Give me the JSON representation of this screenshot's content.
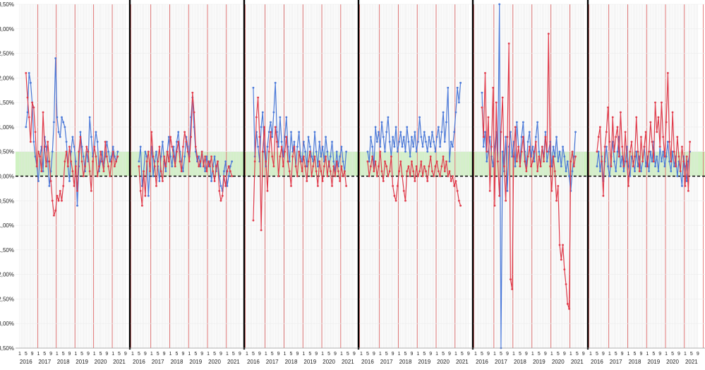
{
  "chart_data": {
    "type": "line",
    "title": "",
    "xlabel": "",
    "ylabel": "",
    "ylim": [
      -3.5,
      3.5
    ],
    "yticks": [
      "3,50%",
      "3,00%",
      "2,50%",
      "2,00%",
      "1,50%",
      "1,00%",
      "0,50%",
      "0,00%",
      "-0,50%",
      "-1,00%",
      "-1,50%",
      "-2,00%",
      "-2,50%",
      "-3,00%",
      "-3,50%"
    ],
    "ytick_values": [
      3.5,
      3.0,
      2.5,
      2.0,
      1.5,
      1.0,
      0.5,
      0.0,
      -0.5,
      -1.0,
      -1.5,
      -2.0,
      -2.5,
      -3.0,
      -3.5
    ],
    "month_tick_labels": [
      "1",
      "5",
      "9"
    ],
    "year_labels": [
      "2016",
      "2017",
      "2018",
      "2019",
      "2020",
      "2021"
    ],
    "band": {
      "from": 0.0,
      "to": 0.5,
      "color": "#c8f0b8"
    },
    "reference_line": {
      "value": 0.0,
      "style": "dashed",
      "color": "#000000"
    },
    "grid": true,
    "legend": "none",
    "colors": {
      "series_a": "#4a78d8",
      "series_b": "#e03a4a",
      "year_divider": "#e06060",
      "panel_divider": "#000000"
    },
    "panels": [
      {
        "series": [
          {
            "color": "#4a78d8",
            "values": [
              1.0,
              1.3,
              2.1,
              1.9,
              1.5,
              0.7,
              0.4,
              0.2,
              -0.1,
              0.4,
              0.6,
              0.1,
              0.8,
              0.6,
              0.3,
              -0.2,
              0.1,
              0.5,
              1.1,
              2.4,
              1.2,
              0.9,
              0.8,
              1.2,
              1.1,
              1.0,
              0.7,
              0.2,
              -0.1,
              0.5,
              0.8,
              0.6,
              0.3,
              -0.6,
              0.2,
              0.9,
              0.6,
              0.4,
              0.1,
              0.5,
              0.3,
              1.2,
              0.8,
              0.4,
              0.6,
              0.9,
              0.7,
              0.1,
              0.3,
              0.5,
              0.2,
              0.4,
              0.7,
              0.5,
              0.3,
              0.4,
              0.6,
              0.4,
              0.3,
              0.5
            ]
          },
          {
            "color": "#e03a4a",
            "values": [
              2.1,
              1.6,
              1.2,
              0.7,
              1.5,
              1.4,
              0.9,
              0.2,
              0.5,
              0.4,
              0.1,
              1.3,
              0.6,
              0.2,
              0.7,
              0.3,
              -0.1,
              -0.5,
              -0.8,
              -0.7,
              -0.4,
              -0.5,
              -0.3,
              -0.5,
              -0.2,
              0.3,
              0.5,
              0.2,
              0.6,
              0.3,
              0.1,
              -0.2,
              0.2,
              -0.3,
              0.5,
              0.8,
              0.3,
              0.0,
              0.2,
              0.6,
              0.5,
              0.1,
              -0.3,
              0.3,
              0.6,
              0.4,
              0.0,
              0.2,
              0.5,
              0.3,
              0.1,
              0.7,
              0.4,
              0.2,
              0.0,
              0.3,
              0.5,
              0.2,
              0.3,
              0.4
            ]
          }
        ]
      },
      {
        "series": [
          {
            "color": "#4a78d8",
            "values": [
              0.3,
              0.6,
              -0.2,
              0.1,
              0.5,
              0.4,
              -0.4,
              0.2,
              0.6,
              0.0,
              0.3,
              0.5,
              0.2,
              -0.1,
              0.4,
              0.7,
              0.3,
              0.1,
              0.5,
              0.8,
              0.4,
              0.2,
              0.6,
              0.3,
              0.7,
              0.9,
              0.5,
              0.3,
              0.1,
              0.4,
              0.8,
              0.6,
              0.4,
              1.2,
              1.6,
              1.0,
              0.5,
              0.3,
              0.4,
              0.2,
              0.5,
              0.3,
              0.1,
              0.4,
              0.2,
              0.3,
              -0.1,
              0.2,
              0.4,
              0.1,
              0.3,
              0.0,
              -0.2,
              -0.3,
              0.1,
              0.3,
              -0.2,
              0.0,
              0.2,
              0.3
            ]
          },
          {
            "color": "#e03a4a",
            "values": [
              0.2,
              -0.3,
              -0.6,
              0.1,
              -0.4,
              0.3,
              0.5,
              0.1,
              0.9,
              0.4,
              0.2,
              -0.2,
              0.3,
              0.6,
              0.1,
              -0.1,
              0.4,
              0.2,
              0.5,
              0.3,
              0.8,
              0.6,
              0.4,
              0.2,
              0.5,
              0.7,
              0.3,
              0.1,
              0.6,
              0.9,
              0.7,
              0.5,
              0.3,
              0.8,
              1.7,
              1.3,
              0.6,
              0.4,
              0.2,
              0.3,
              0.5,
              0.2,
              0.4,
              0.1,
              0.3,
              0.2,
              0.4,
              0.1,
              -0.1,
              0.2,
              0.3,
              -0.3,
              -0.5,
              -0.4,
              0.0,
              -0.2,
              0.1,
              0.2,
              0.1,
              0.0
            ]
          }
        ]
      },
      {
        "series": [
          {
            "color": "#4a78d8",
            "values": [
              1.8,
              0.4,
              0.9,
              0.6,
              0.3,
              1.0,
              1.3,
              0.5,
              0.2,
              0.6,
              0.9,
              1.1,
              0.8,
              1.3,
              1.9,
              0.9,
              0.6,
              1.2,
              0.7,
              0.4,
              0.8,
              1.2,
              0.6,
              0.3,
              0.9,
              0.5,
              0.7,
              0.2,
              0.6,
              0.9,
              0.4,
              0.3,
              0.7,
              0.5,
              0.2,
              0.8,
              0.6,
              0.4,
              0.3,
              0.9,
              0.5,
              0.2,
              0.7,
              0.4,
              0.6,
              0.3,
              0.8,
              0.5,
              0.2,
              0.4,
              0.7,
              0.3,
              0.1,
              0.5,
              0.2,
              0.4,
              0.6,
              0.3,
              0.1,
              0.5
            ]
          },
          {
            "color": "#e03a4a",
            "values": [
              -0.9,
              0.3,
              1.2,
              1.6,
              0.8,
              -1.1,
              0.5,
              1.0,
              0.3,
              -0.3,
              0.5,
              0.9,
              0.4,
              0.2,
              1.0,
              0.7,
              0.0,
              0.4,
              0.6,
              0.2,
              0.5,
              0.8,
              0.3,
              0.1,
              -0.2,
              0.4,
              0.6,
              0.2,
              0.0,
              0.5,
              0.3,
              0.1,
              0.4,
              0.2,
              -0.1,
              0.3,
              0.5,
              0.0,
              0.2,
              0.4,
              0.1,
              -0.2,
              0.3,
              0.1,
              -0.1,
              0.2,
              0.4,
              0.0,
              0.3,
              0.1,
              -0.2,
              0.2,
              0.0,
              0.3,
              0.1,
              -0.1,
              0.2,
              0.0,
              0.1,
              -0.2
            ]
          }
        ]
      },
      {
        "series": [
          {
            "color": "#4a78d8",
            "values": [
              0.5,
              0.3,
              0.8,
              0.6,
              0.2,
              1.0,
              0.7,
              0.9,
              0.6,
              1.1,
              0.8,
              0.5,
              0.9,
              1.2,
              0.7,
              0.4,
              0.8,
              0.6,
              1.0,
              0.5,
              0.7,
              0.9,
              0.6,
              0.8,
              0.5,
              1.0,
              0.7,
              0.4,
              0.8,
              0.6,
              0.9,
              0.5,
              0.7,
              1.2,
              0.8,
              0.6,
              0.9,
              0.7,
              0.5,
              0.8,
              0.6,
              0.9,
              0.7,
              0.5,
              0.8,
              1.0,
              0.6,
              0.9,
              1.3,
              0.7,
              1.1,
              1.8,
              0.3,
              0.7,
              0.6,
              0.9,
              1.3,
              1.8,
              1.5,
              1.9
            ]
          },
          {
            "color": "#e03a4a",
            "values": [
              0.3,
              0.0,
              0.2,
              0.4,
              0.1,
              0.3,
              0.0,
              0.2,
              0.5,
              0.1,
              -0.1,
              0.3,
              0.2,
              0.0,
              0.1,
              0.4,
              -0.2,
              -0.4,
              -0.5,
              -0.2,
              0.1,
              0.3,
              0.0,
              -0.3,
              -0.5,
              0.1,
              0.2,
              0.0,
              0.3,
              0.1,
              -0.1,
              0.2,
              0.0,
              0.1,
              0.3,
              0.0,
              0.2,
              0.1,
              -0.1,
              0.2,
              0.4,
              0.1,
              0.0,
              0.2,
              0.3,
              0.1,
              0.0,
              0.2,
              0.4,
              0.1,
              0.3,
              0.0,
              0.1,
              -0.1,
              0.0,
              -0.2,
              -0.1,
              -0.3,
              -0.5,
              -0.6
            ]
          }
        ]
      },
      {
        "series": [
          {
            "color": "#4a78d8",
            "values": [
              1.7,
              0.6,
              0.9,
              0.3,
              0.5,
              0.8,
              0.4,
              0.2,
              0.6,
              0.9,
              0.3,
              3.5,
              -3.5,
              0.5,
              0.1,
              0.8,
              -0.3,
              0.6,
              0.9,
              0.4,
              0.7,
              0.2,
              1.1,
              0.6,
              0.3,
              0.8,
              1.1,
              0.5,
              0.2,
              0.7,
              0.9,
              0.4,
              0.6,
              0.3,
              0.8,
              1.1,
              0.5,
              0.2,
              0.6,
              0.4,
              0.9,
              0.3,
              0.5,
              0.7,
              0.2,
              0.6,
              0.4,
              0.8,
              0.3,
              0.5,
              0.2,
              0.6,
              0.4,
              0.1,
              0.3,
              0.0,
              -0.3,
              0.1,
              0.4,
              0.9
            ]
          },
          {
            "color": "#e03a4a",
            "values": [
              1.4,
              0.8,
              2.1,
              0.5,
              1.2,
              -0.3,
              0.6,
              1.8,
              -0.6,
              1.5,
              0.3,
              -0.4,
              0.9,
              1.6,
              0.2,
              -0.5,
              0.8,
              2.7,
              -2.1,
              -2.3,
              0.4,
              1.0,
              0.3,
              0.6,
              0.2,
              0.5,
              0.8,
              0.3,
              0.1,
              0.4,
              0.6,
              0.2,
              0.3,
              0.5,
              0.7,
              0.1,
              0.4,
              0.2,
              0.6,
              0.3,
              0.8,
              0.5,
              2.9,
              0.2,
              -0.3,
              0.4,
              0.1,
              -0.5,
              -0.2,
              -1.4,
              -1.7,
              -1.4,
              -1.9,
              -2.2,
              -2.6,
              -2.7,
              0.3,
              0.5,
              0.2,
              0.4
            ]
          }
        ]
      },
      {
        "series": [
          {
            "color": "#4a78d8",
            "values": [
              0.2,
              0.5,
              0.1,
              0.4,
              -0.1,
              0.3,
              0.6,
              0.2,
              0.0,
              0.4,
              0.7,
              0.3,
              0.1,
              0.5,
              0.8,
              0.2,
              0.4,
              0.1,
              0.3,
              0.6,
              0.2,
              0.0,
              0.4,
              0.3,
              0.1,
              0.5,
              0.2,
              0.4,
              0.1,
              0.3,
              0.6,
              0.2,
              0.4,
              0.1,
              0.5,
              0.3,
              0.7,
              0.2,
              0.4,
              0.1,
              0.6,
              0.3,
              0.5,
              0.2,
              0.4,
              0.7,
              0.3,
              0.1,
              0.5,
              0.2,
              0.4,
              0.0,
              0.3,
              0.1,
              -0.2,
              0.4,
              0.2,
              -0.1,
              0.3,
              0.5
            ]
          },
          {
            "color": "#e03a4a",
            "values": [
              0.5,
              0.8,
              1.0,
              0.3,
              -0.4,
              0.6,
              0.9,
              1.4,
              0.7,
              0.2,
              1.2,
              0.5,
              0.8,
              1.0,
              0.4,
              1.3,
              0.6,
              0.2,
              0.9,
              0.3,
              -0.2,
              0.5,
              0.7,
              0.2,
              0.4,
              1.2,
              0.5,
              0.1,
              0.8,
              0.3,
              0.6,
              0.9,
              0.2,
              0.5,
              1.1,
              0.7,
              0.3,
              1.5,
              0.9,
              1.2,
              0.6,
              1.5,
              0.8,
              0.4,
              1.1,
              2.1,
              0.7,
              0.3,
              1.3,
              0.5,
              0.2,
              0.8,
              0.4,
              0.1,
              0.6,
              0.3,
              -0.2,
              0.4,
              -0.3,
              0.7
            ]
          }
        ]
      }
    ]
  }
}
